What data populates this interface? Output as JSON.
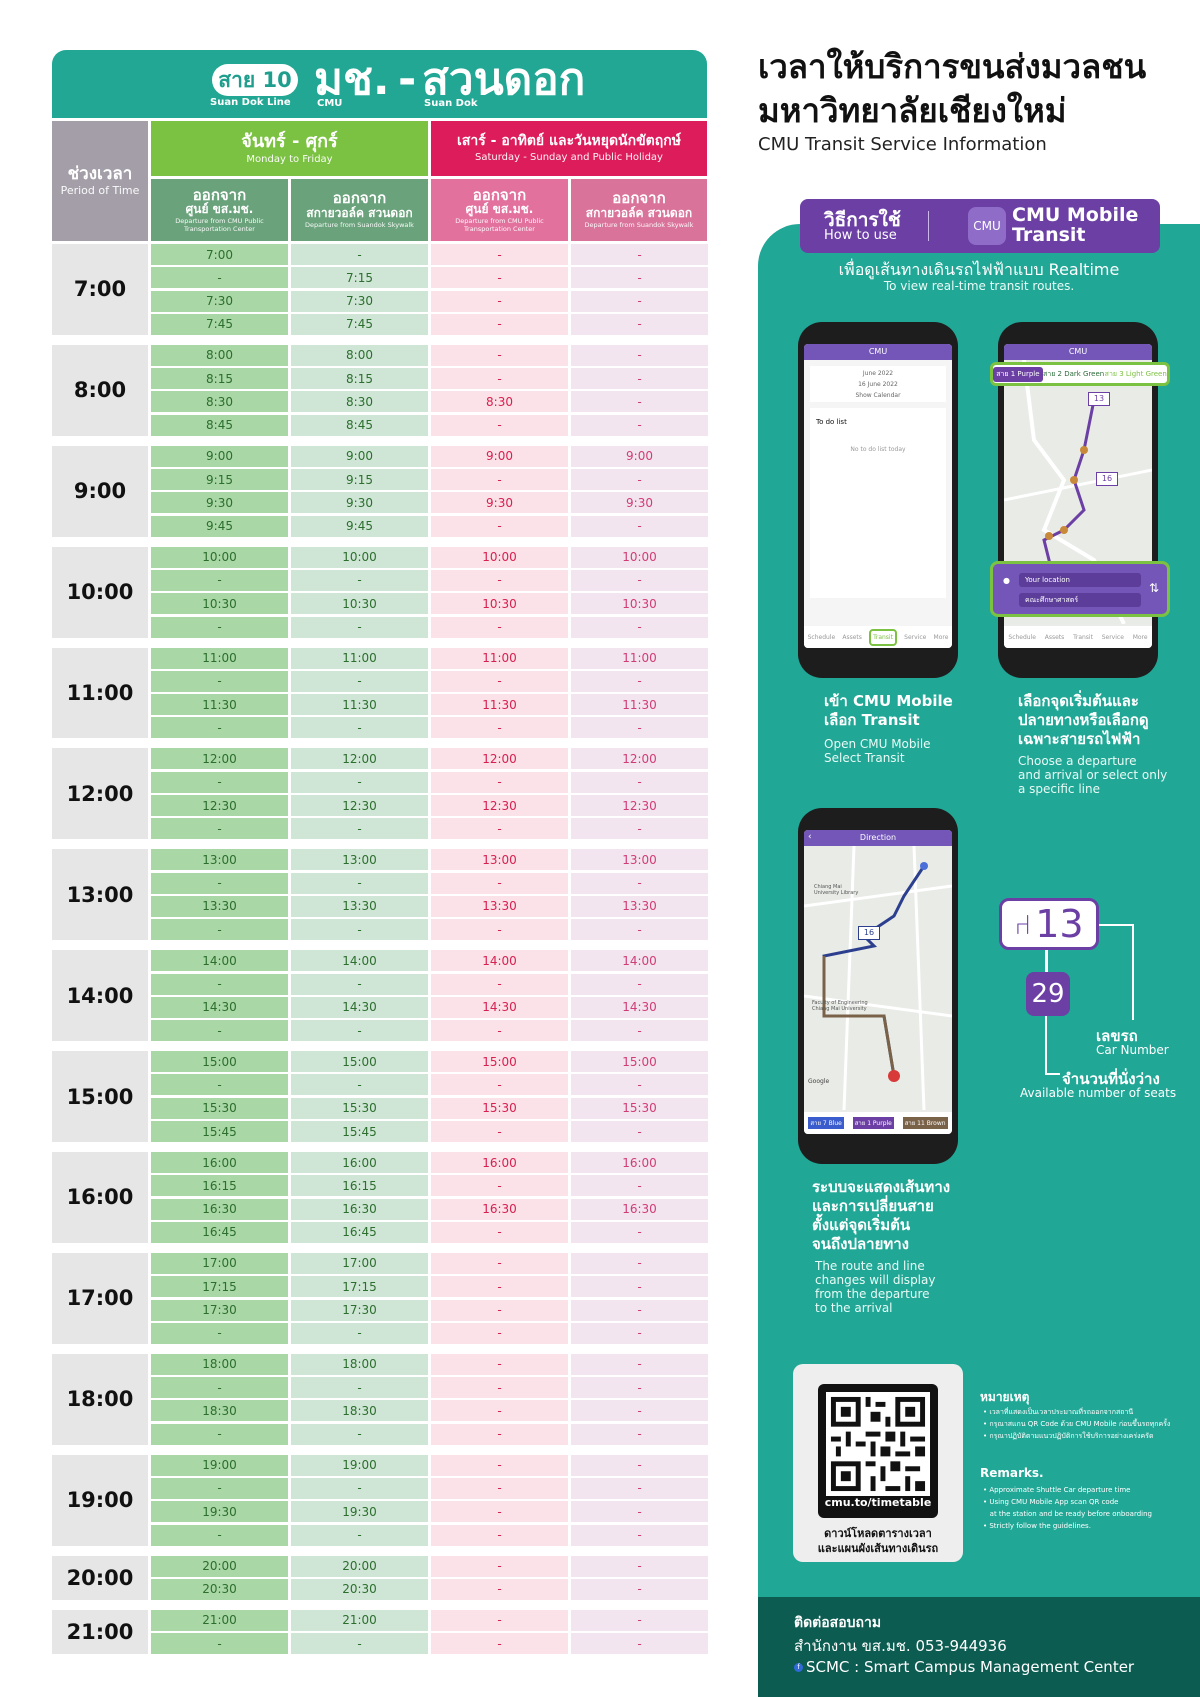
{
  "timetable": {
    "line_badge": "สาย 10",
    "line_badge_en": "Suan Dok Line",
    "from": "มช.",
    "from_en": "CMU",
    "dash": "-",
    "to": "สวนดอก",
    "to_en": "Suan Dok",
    "period_th": "ช่วงเวลา",
    "period_en": "Period of Time",
    "weekday_th": "จันทร์ - ศุกร์",
    "weekday_en": "Monday to Friday",
    "weekend_th": "เสาร์ - อาทิตย์ และวันหยุดนักขัตฤกษ์",
    "weekend_en": "Saturday - Sunday and Public Holiday",
    "dep_center_th1": "ออกจาก",
    "dep_center_th2": "ศูนย์ ขส.มช.",
    "dep_center_en": "Departure from CMU Public Transportation Center",
    "dep_skywalk_th1": "ออกจาก",
    "dep_skywalk_th2": "สกายวอล์ค สวนดอก",
    "dep_skywalk_en": "Departure from Suandok Skywalk",
    "colors": {
      "teal": "#23a795",
      "green": "#7cc242",
      "dark_green": "#6aa27b",
      "magenta": "#dc1c5b",
      "pink": "#e2719e",
      "grey": "#a39ea8"
    },
    "groups": [
      {
        "hour": "7:00",
        "rows": [
          [
            "7:00",
            "-",
            "-",
            "-"
          ],
          [
            "-",
            "7:15",
            "-",
            "-"
          ],
          [
            "7:30",
            "7:30",
            "-",
            "-"
          ],
          [
            "7:45",
            "7:45",
            "-",
            "-"
          ]
        ]
      },
      {
        "hour": "8:00",
        "rows": [
          [
            "8:00",
            "8:00",
            "-",
            "-"
          ],
          [
            "8:15",
            "8:15",
            "-",
            "-"
          ],
          [
            "8:30",
            "8:30",
            "8:30",
            "-"
          ],
          [
            "8:45",
            "8:45",
            "-",
            "-"
          ]
        ]
      },
      {
        "hour": "9:00",
        "rows": [
          [
            "9:00",
            "9:00",
            "9:00",
            "9:00"
          ],
          [
            "9:15",
            "9:15",
            "-",
            "-"
          ],
          [
            "9:30",
            "9:30",
            "9:30",
            "9:30"
          ],
          [
            "9:45",
            "9:45",
            "-",
            "-"
          ]
        ]
      },
      {
        "hour": "10:00",
        "rows": [
          [
            "10:00",
            "10:00",
            "10:00",
            "10:00"
          ],
          [
            "-",
            "-",
            "-",
            "-"
          ],
          [
            "10:30",
            "10:30",
            "10:30",
            "10:30"
          ],
          [
            "-",
            "-",
            "-",
            "-"
          ]
        ]
      },
      {
        "hour": "11:00",
        "rows": [
          [
            "11:00",
            "11:00",
            "11:00",
            "11:00"
          ],
          [
            "-",
            "-",
            "-",
            "-"
          ],
          [
            "11:30",
            "11:30",
            "11:30",
            "11:30"
          ],
          [
            "-",
            "-",
            "-",
            "-"
          ]
        ]
      },
      {
        "hour": "12:00",
        "rows": [
          [
            "12:00",
            "12:00",
            "12:00",
            "12:00"
          ],
          [
            "-",
            "-",
            "-",
            "-"
          ],
          [
            "12:30",
            "12:30",
            "12:30",
            "12:30"
          ],
          [
            "-",
            "-",
            "-",
            "-"
          ]
        ]
      },
      {
        "hour": "13:00",
        "rows": [
          [
            "13:00",
            "13:00",
            "13:00",
            "13:00"
          ],
          [
            "-",
            "-",
            "-",
            "-"
          ],
          [
            "13:30",
            "13:30",
            "13:30",
            "13:30"
          ],
          [
            "-",
            "-",
            "-",
            "-"
          ]
        ]
      },
      {
        "hour": "14:00",
        "rows": [
          [
            "14:00",
            "14:00",
            "14:00",
            "14:00"
          ],
          [
            "-",
            "-",
            "-",
            "-"
          ],
          [
            "14:30",
            "14:30",
            "14:30",
            "14:30"
          ],
          [
            "-",
            "-",
            "-",
            "-"
          ]
        ]
      },
      {
        "hour": "15:00",
        "rows": [
          [
            "15:00",
            "15:00",
            "15:00",
            "15:00"
          ],
          [
            "-",
            "-",
            "-",
            "-"
          ],
          [
            "15:30",
            "15:30",
            "15:30",
            "15:30"
          ],
          [
            "15:45",
            "15:45",
            "-",
            "-"
          ]
        ]
      },
      {
        "hour": "16:00",
        "rows": [
          [
            "16:00",
            "16:00",
            "16:00",
            "16:00"
          ],
          [
            "16:15",
            "16:15",
            "-",
            "-"
          ],
          [
            "16:30",
            "16:30",
            "16:30",
            "16:30"
          ],
          [
            "16:45",
            "16:45",
            "-",
            "-"
          ]
        ]
      },
      {
        "hour": "17:00",
        "rows": [
          [
            "17:00",
            "17:00",
            "-",
            "-"
          ],
          [
            "17:15",
            "17:15",
            "-",
            "-"
          ],
          [
            "17:30",
            "17:30",
            "-",
            "-"
          ],
          [
            "-",
            "-",
            "-",
            "-"
          ]
        ]
      },
      {
        "hour": "18:00",
        "rows": [
          [
            "18:00",
            "18:00",
            "-",
            "-"
          ],
          [
            "-",
            "-",
            "-",
            "-"
          ],
          [
            "18:30",
            "18:30",
            "-",
            "-"
          ],
          [
            "-",
            "-",
            "-",
            "-"
          ]
        ]
      },
      {
        "hour": "19:00",
        "rows": [
          [
            "19:00",
            "19:00",
            "-",
            "-"
          ],
          [
            "-",
            "-",
            "-",
            "-"
          ],
          [
            "19:30",
            "19:30",
            "-",
            "-"
          ],
          [
            "-",
            "-",
            "-",
            "-"
          ]
        ]
      },
      {
        "hour": "20:00",
        "rows": [
          [
            "20:00",
            "20:00",
            "-",
            "-"
          ],
          [
            "20:30",
            "20:30",
            "-",
            "-"
          ]
        ]
      },
      {
        "hour": "21:00",
        "rows": [
          [
            "21:00",
            "21:00",
            "-",
            "-"
          ],
          [
            "-",
            "-",
            "-",
            "-"
          ]
        ]
      }
    ]
  },
  "info": {
    "title_line1": "เวลาให้บริการขนส่งมวลชน",
    "title_line2": "มหาวิทยาลัยเชียงใหม่",
    "title_en": "CMU Transit Service Information",
    "howto_th": "วิธีการใช้",
    "howto_en": "How to use",
    "app_icon_text": "CMU",
    "app_name_1": "CMU Mobile",
    "app_name_2": "Transit",
    "realtime_th": "เพื่อดูเส้นทางเดินรถไฟฟ้าแบบ Realtime",
    "realtime_en": "To view real-time transit routes.",
    "accent_purple": "#6c3fa5",
    "panel_green": "#21a796",
    "phone1": {
      "brand": "CMU",
      "date1": "June 2022",
      "date2": "16 June 2022",
      "calendar": "Show Calendar",
      "todo_title": "To do list",
      "todo_empty": "No to do list today",
      "nav": [
        "Schedule",
        "Assets",
        "Transit",
        "Service",
        "More"
      ]
    },
    "phone2": {
      "brand": "CMU",
      "line_tabs": [
        "สาย 1 Purple",
        "สาย 2 Dark Green",
        "สาย 3 Light Green"
      ],
      "bus_number_1": "13",
      "bus_number_2": "16",
      "from_field": "Your location",
      "to_field": "คณะศึกษาศาสตร์",
      "nav": [
        "Schedule",
        "Assets",
        "Transit",
        "Service",
        "More"
      ]
    },
    "phone3": {
      "header": "Direction",
      "bus_number": "16",
      "map_place_1": "Chiang Mai University Library",
      "map_place_2": "Faculty of Engineering Chiang Mai University",
      "map_attribution": "Google",
      "route_chips": [
        "สาย 7 Blue",
        "สาย 1 Purple",
        "สาย 11 Brown"
      ]
    },
    "step1_th": [
      "เข้า CMU Mobile",
      "เลือก Transit"
    ],
    "step1_en": [
      "Open CMU Mobile",
      "Select Transit"
    ],
    "step2_th": [
      "เลือกจุดเริ่มต้นและ",
      "ปลายทางหรือเลือกดู",
      "เฉพาะสายรถไฟฟ้า"
    ],
    "step2_en": [
      "Choose a departure",
      "and arrival or select only",
      "a specific line"
    ],
    "step3_th": [
      "ระบบจะแสดงเส้นทาง",
      "และการเปลี่ยนสาย",
      "ตั้งแต่จุดเริ่มต้น",
      "จนถึงปลายทาง"
    ],
    "step3_en": [
      "The route and line",
      "changes will display",
      "from the departure",
      "to the arrival"
    ],
    "car_number": "13",
    "seat_count": "29",
    "car_number_th": "เลขรถ",
    "car_number_en": "Car Number",
    "seats_th": "จำนวนที่นั่งว่าง",
    "seats_en": "Available number of seats",
    "qr_url": "cmu.to/timetable",
    "qr_caption_1": "ดาวน์โหลดตารางเวลา",
    "qr_caption_2": "และแผนผังเส้นทางเดินรถ",
    "notes_th_title": "หมายเหตุ",
    "notes_th": [
      "• เวลาที่แสดงเป็นเวลาประมาณที่รถออกจากสถานี",
      "• กรุณาสแกน QR Code ด้วย CMU Mobile ก่อนขึ้นรถทุกครั้ง",
      "• กรุณาปฏิบัติตามแนวปฏิบัติการใช้บริการอย่างเคร่งครัด"
    ],
    "remarks_title": "Remarks.",
    "remarks": [
      "• Approximate Shuttle Car departure time",
      "• Using CMU Mobile App scan QR code",
      "   at the station and be ready before onboarding",
      "• Strictly follow the guidelines."
    ],
    "contact_title": "ติดต่อสอบถาม",
    "contact_office": "สำนักงาน ขส.มช. 053-944936",
    "contact_fb": "SCMC : Smart Campus Management Center"
  }
}
